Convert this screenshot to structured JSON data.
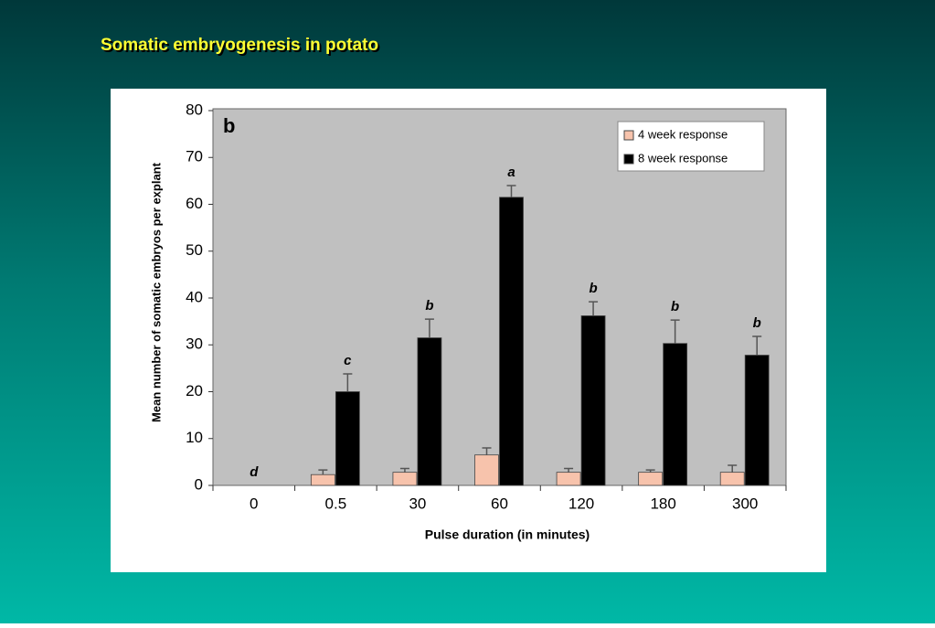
{
  "header": {
    "title": "Somatic embryogenesis in potato"
  },
  "chart_data": {
    "type": "bar",
    "panel_label": "b",
    "x_label": "Pulse duration (in minutes)",
    "y_label": "Mean number of somatic embryos per explant",
    "categories": [
      "0",
      "0.5",
      "30",
      "60",
      "120",
      "180",
      "300"
    ],
    "series": [
      {
        "name": "4 week response",
        "color": "#f7c3ac",
        "values": [
          0,
          2.3,
          2.8,
          6.5,
          2.8,
          2.8,
          2.8
        ],
        "errors": [
          0,
          1,
          0.8,
          1.5,
          0.8,
          0.5,
          1.5
        ]
      },
      {
        "name": "8 week response",
        "color": "#000000",
        "values": [
          0,
          20,
          31.5,
          61.5,
          36.2,
          30.3,
          27.8
        ],
        "errors": [
          0,
          3.8,
          4,
          2.5,
          3,
          5,
          4
        ]
      }
    ],
    "annotations": [
      "d",
      "c",
      "b",
      "a",
      "b",
      "b",
      "b"
    ],
    "ylim": [
      0,
      80
    ],
    "yticks": [
      0,
      10,
      20,
      30,
      40,
      50,
      60,
      70,
      80
    ],
    "grid": false,
    "legend": "upper right"
  }
}
